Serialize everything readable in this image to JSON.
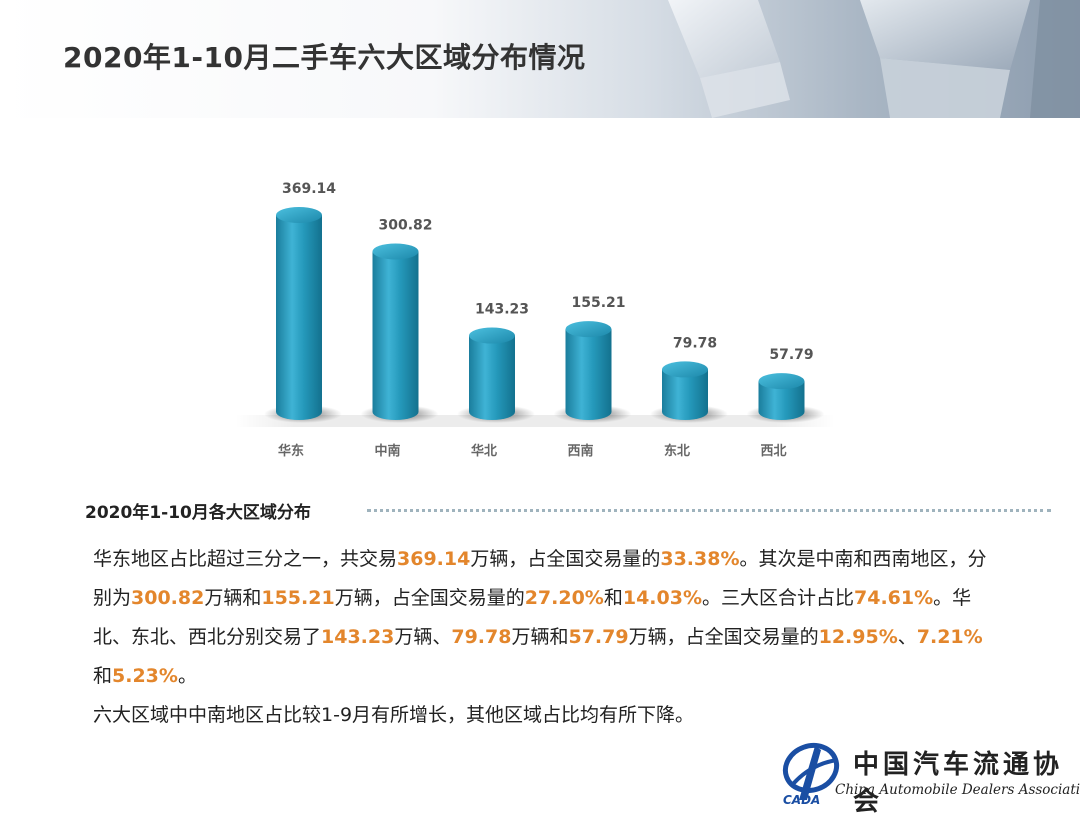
{
  "header": {
    "title": "2020年1-10月二手车六大区域分布情况"
  },
  "chart_data": {
    "type": "bar",
    "categories": [
      "华东",
      "中南",
      "华北",
      "西南",
      "东北",
      "西北"
    ],
    "values": [
      369.14,
      300.82,
      143.23,
      155.21,
      79.78,
      57.79
    ],
    "data_labels": [
      "369.14",
      "300.82",
      "143.23",
      "155.21",
      "79.78",
      "57.79"
    ],
    "title": "",
    "xlabel": "",
    "ylabel": "",
    "ylim": [
      0,
      400
    ],
    "grid": false,
    "legend": "none",
    "bar_color": "#2496b8"
  },
  "section": {
    "title": "2020年1-10月各大区域分布"
  },
  "paragraph1": [
    {
      "t": "华东地区占比超过三分之一，共交易",
      "h": false
    },
    {
      "t": "369.14",
      "h": true
    },
    {
      "t": "万辆，占全国交易量的",
      "h": false
    },
    {
      "t": "33.38%",
      "h": true
    },
    {
      "t": "。其次是中南和西南地区，分别为",
      "h": false
    },
    {
      "t": "300.82",
      "h": true
    },
    {
      "t": "万辆和",
      "h": false
    },
    {
      "t": "155.21",
      "h": true
    },
    {
      "t": "万辆，占全国交易量的",
      "h": false
    },
    {
      "t": "27.20%",
      "h": true
    },
    {
      "t": "和",
      "h": false
    },
    {
      "t": "14.03%",
      "h": true
    },
    {
      "t": "。三大区合计占比",
      "h": false
    },
    {
      "t": "74.61%",
      "h": true
    },
    {
      "t": "。华北、东北、西北分别交易了",
      "h": false
    },
    {
      "t": "143.23",
      "h": true
    },
    {
      "t": "万辆、",
      "h": false
    },
    {
      "t": "79.78",
      "h": true
    },
    {
      "t": "万辆和",
      "h": false
    },
    {
      "t": "57.79",
      "h": true
    },
    {
      "t": "万辆，占全国交易量的",
      "h": false
    },
    {
      "t": "12.95%",
      "h": true
    },
    {
      "t": "、",
      "h": false
    },
    {
      "t": "7.21%",
      "h": true
    },
    {
      "t": "和",
      "h": false
    },
    {
      "t": "5.23%",
      "h": true
    },
    {
      "t": "。",
      "h": false
    }
  ],
  "paragraph2": "六大区域中中南地区占比较1-9月有所增长，其他区域占比均有所下降。",
  "logo": {
    "name_cn": "中国汽车流通协会",
    "name_en": "China Automobile Dealers Association",
    "abbr": "CADA"
  }
}
